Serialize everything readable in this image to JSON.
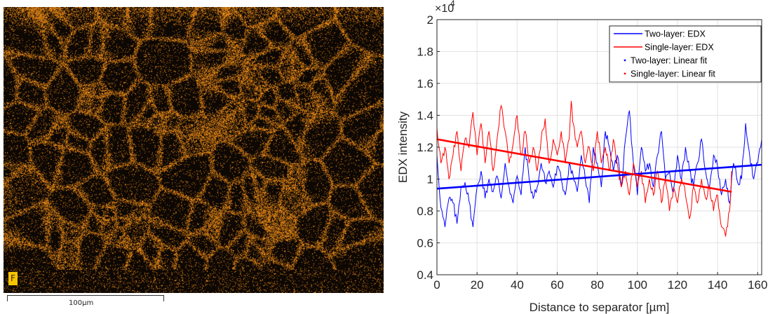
{
  "image_panel": {
    "element_label": "F",
    "scale_bar_label": "100µm",
    "map_color": "#ff9a1a"
  },
  "chart_data": {
    "type": "line",
    "xlabel": "Distance to separator [µm]",
    "ylabel": "EDX intensity",
    "y_multiplier_label": "×10",
    "y_multiplier_exponent": "4",
    "xlim": [
      0,
      162
    ],
    "ylim": [
      0.4,
      2.0
    ],
    "xticks": [
      0,
      20,
      40,
      60,
      80,
      100,
      120,
      140,
      160
    ],
    "yticks": [
      0.4,
      0.6,
      0.8,
      1,
      1.2,
      1.4,
      1.6,
      1.8,
      2
    ],
    "ytick_labels": [
      "0.4",
      "0.6",
      "0.8",
      "1",
      "1.2",
      "1.4",
      "1.6",
      "1.8",
      "2"
    ],
    "grid": true,
    "legend_position": "top-right",
    "series": [
      {
        "name": "Two-layer: EDX",
        "color": "#0000ff",
        "style": "line",
        "x_range": [
          0,
          162
        ],
        "anchors": [
          [
            0,
            1.15
          ],
          [
            2,
            0.82
          ],
          [
            4,
            0.7
          ],
          [
            6,
            0.88
          ],
          [
            8,
            0.85
          ],
          [
            10,
            0.72
          ],
          [
            12,
            0.95
          ],
          [
            14,
            0.98
          ],
          [
            16,
            0.86
          ],
          [
            18,
            0.7
          ],
          [
            20,
            0.95
          ],
          [
            22,
            1.05
          ],
          [
            24,
            0.88
          ],
          [
            26,
            1.0
          ],
          [
            28,
            0.92
          ],
          [
            30,
            1.02
          ],
          [
            32,
            0.88
          ],
          [
            34,
            1.1
          ],
          [
            36,
            0.95
          ],
          [
            38,
            0.85
          ],
          [
            40,
            1.02
          ],
          [
            42,
            0.9
          ],
          [
            44,
            1.2
          ],
          [
            46,
            1.0
          ],
          [
            48,
            0.88
          ],
          [
            50,
            0.95
          ],
          [
            52,
            1.1
          ],
          [
            54,
            0.98
          ],
          [
            56,
            1.05
          ],
          [
            58,
            0.95
          ],
          [
            60,
            1.08
          ],
          [
            62,
            1.0
          ],
          [
            64,
            0.9
          ],
          [
            66,
            1.1
          ],
          [
            68,
            1.02
          ],
          [
            70,
            0.92
          ],
          [
            72,
            1.15
          ],
          [
            74,
            1.0
          ],
          [
            76,
            0.85
          ],
          [
            78,
            1.2
          ],
          [
            80,
            1.1
          ],
          [
            82,
            0.95
          ],
          [
            84,
            1.3
          ],
          [
            86,
            1.2
          ],
          [
            88,
            1.05
          ],
          [
            90,
            1.15
          ],
          [
            92,
            0.95
          ],
          [
            94,
            1.25
          ],
          [
            96,
            1.43
          ],
          [
            98,
            1.1
          ],
          [
            100,
            0.9
          ],
          [
            102,
            1.2
          ],
          [
            104,
            1.05
          ],
          [
            106,
            1.1
          ],
          [
            108,
            0.95
          ],
          [
            110,
            1.15
          ],
          [
            112,
            1.3
          ],
          [
            114,
            1.0
          ],
          [
            116,
            1.05
          ],
          [
            118,
            0.92
          ],
          [
            120,
            1.15
          ],
          [
            122,
            1.0
          ],
          [
            124,
            1.2
          ],
          [
            126,
            1.05
          ],
          [
            128,
            0.95
          ],
          [
            130,
            1.1
          ],
          [
            132,
            1.25
          ],
          [
            134,
            1.05
          ],
          [
            136,
            0.95
          ],
          [
            138,
            1.15
          ],
          [
            140,
            1.08
          ],
          [
            142,
            0.9
          ],
          [
            144,
            1.0
          ],
          [
            146,
            0.85
          ],
          [
            148,
            1.1
          ],
          [
            150,
            0.98
          ],
          [
            152,
            1.0
          ],
          [
            154,
            1.35
          ],
          [
            156,
            1.15
          ],
          [
            158,
            1.0
          ],
          [
            160,
            1.1
          ],
          [
            162,
            1.25
          ]
        ]
      },
      {
        "name": "Single-layer: EDX",
        "color": "#ff0000",
        "style": "line",
        "x_range": [
          0,
          147
        ],
        "anchors": [
          [
            0,
            1.32
          ],
          [
            2,
            1.1
          ],
          [
            4,
            1.2
          ],
          [
            6,
            1.0
          ],
          [
            8,
            1.15
          ],
          [
            10,
            1.3
          ],
          [
            12,
            1.05
          ],
          [
            14,
            1.25
          ],
          [
            16,
            1.2
          ],
          [
            18,
            1.42
          ],
          [
            20,
            1.15
          ],
          [
            22,
            1.35
          ],
          [
            24,
            1.1
          ],
          [
            26,
            1.3
          ],
          [
            28,
            1.05
          ],
          [
            30,
            1.25
          ],
          [
            32,
            1.46
          ],
          [
            34,
            1.3
          ],
          [
            36,
            1.1
          ],
          [
            38,
            1.22
          ],
          [
            40,
            1.4
          ],
          [
            42,
            1.15
          ],
          [
            44,
            1.3
          ],
          [
            46,
            1.1
          ],
          [
            48,
            1.2
          ],
          [
            50,
            1.05
          ],
          [
            52,
            1.25
          ],
          [
            54,
            1.38
          ],
          [
            56,
            1.1
          ],
          [
            58,
            1.25
          ],
          [
            60,
            1.15
          ],
          [
            62,
            1.3
          ],
          [
            64,
            1.1
          ],
          [
            66,
            1.25
          ],
          [
            67,
            1.49
          ],
          [
            68,
            1.35
          ],
          [
            70,
            1.2
          ],
          [
            72,
            1.3
          ],
          [
            74,
            1.1
          ],
          [
            76,
            1.2
          ],
          [
            78,
            1.05
          ],
          [
            80,
            1.3
          ],
          [
            82,
            1.1
          ],
          [
            84,
            1.2
          ],
          [
            86,
            1.05
          ],
          [
            88,
            1.25
          ],
          [
            90,
            1.1
          ],
          [
            92,
            0.95
          ],
          [
            94,
            1.05
          ],
          [
            96,
            0.9
          ],
          [
            98,
            1.1
          ],
          [
            100,
            0.95
          ],
          [
            102,
            1.05
          ],
          [
            104,
            0.85
          ],
          [
            106,
            1.0
          ],
          [
            108,
            0.9
          ],
          [
            110,
            1.05
          ],
          [
            112,
            0.85
          ],
          [
            114,
            1.0
          ],
          [
            116,
            0.8
          ],
          [
            118,
            0.95
          ],
          [
            120,
            0.85
          ],
          [
            122,
            1.0
          ],
          [
            124,
            0.9
          ],
          [
            126,
            0.75
          ],
          [
            128,
            0.95
          ],
          [
            130,
            0.85
          ],
          [
            132,
            1.0
          ],
          [
            134,
            0.88
          ],
          [
            136,
            0.95
          ],
          [
            138,
            0.8
          ],
          [
            140,
            0.9
          ],
          [
            142,
            0.7
          ],
          [
            144,
            0.64
          ],
          [
            146,
            0.8
          ],
          [
            147,
            1.05
          ]
        ]
      },
      {
        "name": "Two-layer: Linear fit",
        "color": "#0000ff",
        "style": "fit",
        "points": [
          [
            0,
            0.94
          ],
          [
            162,
            1.09
          ]
        ]
      },
      {
        "name": "Single-layer: Linear fit",
        "color": "#ff0000",
        "style": "fit",
        "points": [
          [
            0,
            1.25
          ],
          [
            147,
            0.92
          ]
        ]
      }
    ]
  }
}
